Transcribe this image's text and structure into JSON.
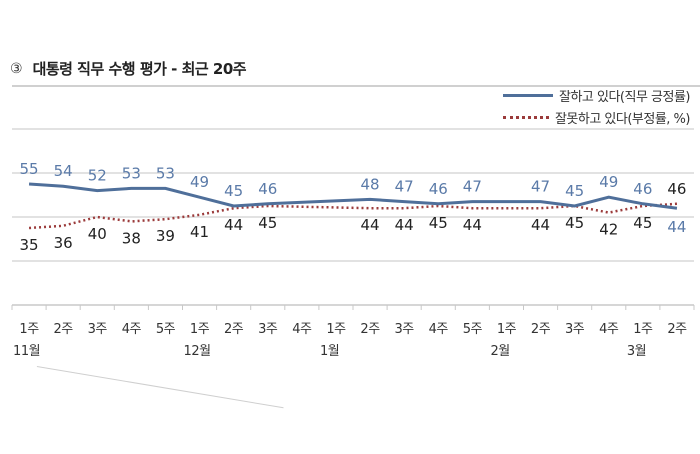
{
  "header": {
    "icon": "③",
    "title": "대통령 직무 수행 평가 - 최근 20주"
  },
  "legend": {
    "positive": "잘하고 있다(직무 긍정률)",
    "negative": "잘못하고 있다(부정률, %)"
  },
  "colors": {
    "positive": "#4f6f9a",
    "negative": "#9b3b3b",
    "grid": "#d9d9d9"
  },
  "chart_data": {
    "type": "line",
    "title": "대통령 직무 수행 평가 - 최근 20주",
    "xlabel": "",
    "ylabel": "%",
    "ylim": [
      0,
      80
    ],
    "grid": true,
    "legend_position": "top-right",
    "categories": [
      "1주",
      "2주",
      "3주",
      "4주",
      "5주",
      "1주",
      "2주",
      "3주",
      "4주",
      "1주",
      "2주",
      "3주",
      "4주",
      "5주",
      "1주",
      "2주",
      "3주",
      "4주",
      "1주",
      "2주"
    ],
    "months": [
      {
        "label": "11월",
        "index": 0
      },
      {
        "label": "12월",
        "index": 5
      },
      {
        "label": "1월",
        "index": 9
      },
      {
        "label": "2월",
        "index": 14
      },
      {
        "label": "3월",
        "index": 18
      }
    ],
    "series": [
      {
        "name": "잘하고 있다(직무 긍정률)",
        "style": "solid",
        "values": [
          55,
          54,
          52,
          53,
          53,
          49,
          45,
          46,
          null,
          null,
          48,
          47,
          46,
          47,
          null,
          47,
          45,
          49,
          46,
          44
        ]
      },
      {
        "name": "잘못하고 있다(부정률, %)",
        "style": "dotted",
        "values": [
          35,
          36,
          40,
          38,
          39,
          41,
          44,
          45,
          null,
          null,
          44,
          44,
          45,
          44,
          null,
          44,
          45,
          42,
          45,
          46
        ]
      }
    ]
  }
}
